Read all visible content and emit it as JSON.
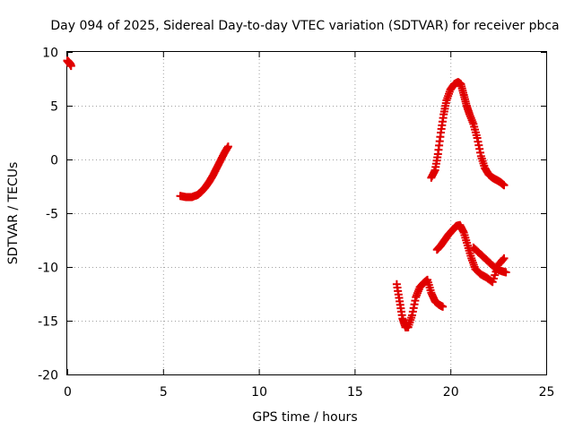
{
  "chart_data": {
    "type": "scatter",
    "title": "Day 094 of 2025, Sidereal Day-to-day VTEC variation (SDTVAR) for receiver pbca",
    "xlabel": "GPS time / hours",
    "ylabel": "SDTVAR / TECUs",
    "xlim": [
      0,
      25
    ],
    "ylim": [
      -20,
      10
    ],
    "xticks": [
      "0",
      "5",
      "10",
      "15",
      "20",
      "25"
    ],
    "yticks": [
      "-20",
      "-15",
      "-10",
      "-5",
      "0",
      "5",
      "10"
    ],
    "grid": true,
    "marker": "plus",
    "color": "#e00000",
    "series": [
      {
        "x": [
          0.0,
          0.05,
          0.1,
          0.15,
          0.2
        ],
        "y": [
          9.2,
          9.1,
          9.0,
          8.9,
          8.7
        ]
      },
      {
        "x": [
          5.9,
          6.2,
          6.5,
          6.8,
          7.0,
          7.2,
          7.4,
          7.6,
          7.8,
          8.0,
          8.2,
          8.4
        ],
        "y": [
          -3.4,
          -3.5,
          -3.5,
          -3.3,
          -3.0,
          -2.6,
          -2.1,
          -1.5,
          -0.8,
          -0.1,
          0.6,
          1.2
        ]
      },
      {
        "x": [
          19.0,
          19.2,
          19.35,
          19.5,
          19.65,
          19.8,
          20.0,
          20.2,
          20.4,
          20.55,
          20.7,
          20.85,
          21.0,
          21.2,
          21.4,
          21.6,
          21.8,
          22.0,
          22.2,
          22.4,
          22.6,
          22.8
        ],
        "y": [
          -1.7,
          -1.0,
          0.5,
          2.5,
          4.2,
          5.5,
          6.5,
          7.0,
          7.2,
          7.0,
          6.0,
          5.0,
          4.2,
          3.3,
          2.0,
          0.3,
          -0.8,
          -1.4,
          -1.7,
          -1.9,
          -2.1,
          -2.4
        ]
      },
      {
        "x": [
          17.2,
          17.35,
          17.5,
          17.65,
          17.8,
          18.0,
          18.2,
          18.4,
          18.6,
          18.8,
          19.0,
          19.2,
          19.4,
          19.6
        ],
        "y": [
          -11.6,
          -13.2,
          -14.8,
          -15.6,
          -15.6,
          -14.5,
          -12.8,
          -11.9,
          -11.5,
          -11.2,
          -12.4,
          -13.2,
          -13.5,
          -13.7
        ]
      },
      {
        "x": [
          19.3,
          19.5,
          19.7,
          19.9,
          20.1,
          20.3,
          20.5,
          20.7,
          20.9,
          21.1,
          21.3,
          21.6,
          21.9,
          22.2,
          22.5,
          22.8
        ],
        "y": [
          -8.4,
          -8.0,
          -7.5,
          -7.0,
          -6.6,
          -6.2,
          -6.1,
          -6.8,
          -8.0,
          -9.2,
          -10.2,
          -10.7,
          -11.0,
          -11.4,
          -9.8,
          -9.2
        ]
      },
      {
        "x": [
          21.2,
          21.5,
          21.8,
          22.1,
          22.4,
          22.7,
          22.9
        ],
        "y": [
          -8.2,
          -8.7,
          -9.2,
          -9.7,
          -10.2,
          -10.4,
          -10.5
        ]
      }
    ]
  }
}
